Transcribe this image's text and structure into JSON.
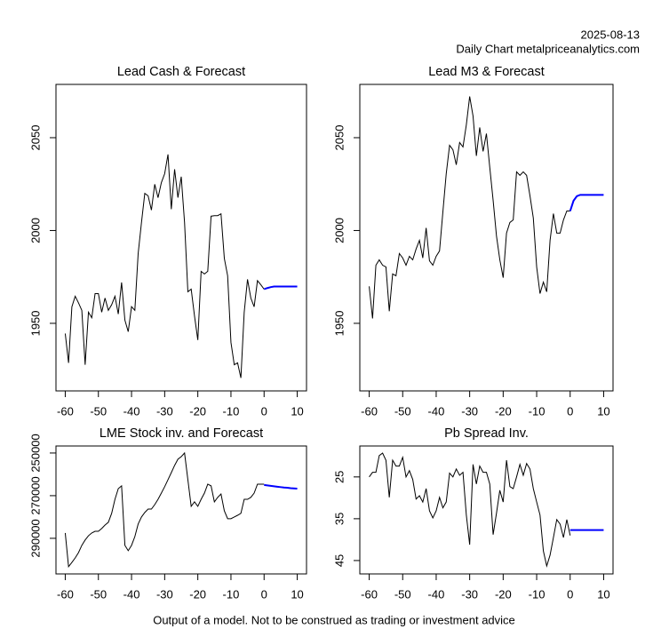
{
  "header": {
    "date": "2025-08-13",
    "source": "Daily Chart metalpriceanalytics.com"
  },
  "footer": "Output of a model. Not to be construed as trading or investment advice",
  "chart_data": [
    {
      "type": "line",
      "title": "Lead Cash & Forecast",
      "x": [
        -60,
        -59,
        -58,
        -57,
        -56,
        -55,
        -54,
        -53,
        -52,
        -51,
        -50,
        -49,
        -48,
        -47,
        -46,
        -45,
        -44,
        -43,
        -42,
        -41,
        -40,
        -39,
        -38,
        -37,
        -36,
        -35,
        -34,
        -33,
        -32,
        -31,
        -30,
        -29,
        -28,
        -27,
        -26,
        -25,
        -24,
        -23,
        -22,
        -21,
        -20,
        -19,
        -18,
        -17,
        -16,
        -15,
        -14,
        -13,
        -12,
        -11,
        -10,
        -9,
        -8,
        -7,
        -6,
        -5,
        -4,
        -3,
        -2,
        -1,
        0,
        1,
        2,
        3,
        4,
        5,
        6,
        7,
        8,
        9,
        10
      ],
      "series": [
        {
          "color": "#000000",
          "values": [
            1944.5,
            1928.7,
            1958.9,
            1964.6,
            1961,
            1957,
            1927.7,
            1956,
            1953,
            1966,
            1966,
            1956,
            1963.6,
            1957,
            1960,
            1964.6,
            1955,
            1972,
            1951.7,
            1945.5,
            1959,
            1957,
            1987.6,
            2004.3,
            2020,
            2018.7,
            2011,
            2024.9,
            2017.7,
            2025.8,
            2030.6,
            2041,
            2011.5,
            2033,
            2017.7,
            2029,
            2004.3,
            1967,
            1968.4,
            1954,
            1941,
            1978,
            1976.6,
            1978,
            2007.7,
            2008,
            2008,
            2009,
            1985,
            1975.6,
            1939.7,
            1927.7,
            1928.7,
            1920.6,
            1956,
            1973.7,
            1963.6,
            1958.9,
            1973,
            1970.8,
            1968.4,
            null,
            null,
            null,
            null,
            null,
            null,
            null,
            null,
            null,
            null
          ]
        },
        {
          "color": "#0000ff",
          "values": [
            null,
            null,
            null,
            null,
            null,
            null,
            null,
            null,
            null,
            null,
            null,
            null,
            null,
            null,
            null,
            null,
            null,
            null,
            null,
            null,
            null,
            null,
            null,
            null,
            null,
            null,
            null,
            null,
            null,
            null,
            null,
            null,
            null,
            null,
            null,
            null,
            null,
            null,
            null,
            null,
            null,
            null,
            null,
            null,
            null,
            null,
            null,
            null,
            null,
            null,
            null,
            null,
            null,
            null,
            null,
            null,
            null,
            null,
            null,
            null,
            1968.4,
            1969,
            1969.5,
            1969.8,
            1969.8,
            1969.8,
            1969.8,
            1969.8,
            1969.8,
            1969.8,
            1969.8
          ]
        }
      ],
      "xlim": [
        -62.8,
        12.8
      ],
      "xticks": [
        -60,
        -50,
        -40,
        -30,
        -20,
        -10,
        0,
        10
      ],
      "ylim": [
        1913.6,
        2078.7
      ],
      "yticks": [
        1950,
        2000,
        2050
      ]
    },
    {
      "type": "line",
      "title": "Lead M3 & Forecast",
      "x": [
        -60,
        -59,
        -58,
        -57,
        -56,
        -55,
        -54,
        -53,
        -52,
        -51,
        -50,
        -49,
        -48,
        -47,
        -46,
        -45,
        -44,
        -43,
        -42,
        -41,
        -40,
        -39,
        -38,
        -37,
        -36,
        -35,
        -34,
        -33,
        -32,
        -31,
        -30,
        -29,
        -28,
        -27,
        -26,
        -25,
        -24,
        -23,
        -22,
        -21,
        -20,
        -19,
        -18,
        -17,
        -16,
        -15,
        -14,
        -13,
        -12,
        -11,
        -10,
        -9,
        -8,
        -7,
        -6,
        -5,
        -4,
        -3,
        -2,
        -1,
        0,
        1,
        2,
        3,
        4,
        5,
        6,
        7,
        8,
        9,
        10
      ],
      "series": [
        {
          "color": "#000000",
          "values": [
            1969.9,
            1952.6,
            1981.3,
            1984.2,
            1981.3,
            1980.4,
            1956.5,
            1976.6,
            1975.6,
            1987.6,
            1985.2,
            1981.3,
            1986.1,
            1984.2,
            1990,
            1994.7,
            1985.2,
            2001.4,
            1983.7,
            1981.3,
            1986.1,
            1989,
            2010,
            2030.6,
            2045.9,
            2043.5,
            2035.4,
            2047.4,
            2045,
            2056.9,
            2072.2,
            2061.7,
            2040.2,
            2055.5,
            2042.6,
            2052.2,
            2034,
            2016.3,
            1997.1,
            1984.2,
            1974.6,
            1998.6,
            2004.3,
            2005.7,
            2031.6,
            2029.7,
            2031.6,
            2029.7,
            2018.7,
            2006.7,
            1980.4,
            1966,
            1972.2,
            1967,
            1994.7,
            2009.1,
            1998.6,
            1998.6,
            2005.7,
            2010.5,
            2010.5,
            null,
            null,
            null,
            null,
            null,
            null,
            null,
            null,
            null,
            null
          ]
        },
        {
          "color": "#0000ff",
          "values": [
            null,
            null,
            null,
            null,
            null,
            null,
            null,
            null,
            null,
            null,
            null,
            null,
            null,
            null,
            null,
            null,
            null,
            null,
            null,
            null,
            null,
            null,
            null,
            null,
            null,
            null,
            null,
            null,
            null,
            null,
            null,
            null,
            null,
            null,
            null,
            null,
            null,
            null,
            null,
            null,
            null,
            null,
            null,
            null,
            null,
            null,
            null,
            null,
            null,
            null,
            null,
            null,
            null,
            null,
            null,
            null,
            null,
            null,
            null,
            null,
            2010.5,
            2016,
            2018.5,
            2019.2,
            2019.2,
            2019.2,
            2019.2,
            2019.2,
            2019.2,
            2019.2,
            2019.2
          ]
        }
      ],
      "xlim": [
        -62.8,
        12.8
      ],
      "xticks": [
        -60,
        -50,
        -40,
        -30,
        -20,
        -10,
        0,
        10
      ],
      "ylim": [
        1913.6,
        2078.7
      ],
      "yticks": [
        1950,
        2000,
        2050
      ]
    },
    {
      "type": "line",
      "title": "LME Stock inv. and Forecast",
      "x": [
        -60,
        -59,
        -58,
        -57,
        -56,
        -55,
        -54,
        -53,
        -52,
        -51,
        -50,
        -49,
        -48,
        -47,
        -46,
        -45,
        -44,
        -43,
        -42,
        -41,
        -40,
        -39,
        -38,
        -37,
        -36,
        -35,
        -34,
        -33,
        -32,
        -31,
        -30,
        -29,
        -28,
        -27,
        -26,
        -25,
        -24,
        -23,
        -22,
        -21,
        -20,
        -19,
        -18,
        -17,
        -16,
        -15,
        -14,
        -13,
        -12,
        -11,
        -10,
        -9,
        -8,
        -7,
        -6,
        -5,
        -4,
        -3,
        -2,
        -1,
        0,
        1,
        2,
        3,
        4,
        5,
        6,
        7,
        8,
        9,
        10
      ],
      "series": [
        {
          "color": "#000000",
          "values": [
            287500,
            303300,
            301300,
            299200,
            296700,
            293300,
            290800,
            288800,
            287500,
            286700,
            286700,
            285400,
            283800,
            282500,
            278300,
            271700,
            266700,
            265400,
            293300,
            295800,
            293300,
            289200,
            283300,
            280000,
            277900,
            276300,
            276300,
            274200,
            271700,
            268800,
            265800,
            262500,
            259200,
            255800,
            252900,
            251700,
            250000,
            262500,
            275000,
            272900,
            275000,
            271700,
            268800,
            264600,
            265400,
            272900,
            270800,
            269200,
            277100,
            280800,
            280800,
            280000,
            279200,
            278300,
            271700,
            271700,
            270800,
            268800,
            264600,
            264600,
            264600,
            null,
            null,
            null,
            null,
            null,
            null,
            null,
            null,
            null,
            null
          ]
        },
        {
          "color": "#0000ff",
          "values": [
            null,
            null,
            null,
            null,
            null,
            null,
            null,
            null,
            null,
            null,
            null,
            null,
            null,
            null,
            null,
            null,
            null,
            null,
            null,
            null,
            null,
            null,
            null,
            null,
            null,
            null,
            null,
            null,
            null,
            null,
            null,
            null,
            null,
            null,
            null,
            null,
            null,
            null,
            null,
            null,
            null,
            null,
            null,
            null,
            null,
            null,
            null,
            null,
            null,
            null,
            null,
            null,
            null,
            null,
            null,
            null,
            null,
            null,
            null,
            null,
            265000,
            265200,
            265400,
            265600,
            265800,
            266000,
            266200,
            266300,
            266500,
            266600,
            266700
          ]
        }
      ],
      "xlim": [
        -62.8,
        12.8
      ],
      "xticks": [
        -60,
        -50,
        -40,
        -30,
        -20,
        -10,
        0,
        10
      ],
      "ylim": [
        306700,
        246700
      ],
      "yticks": [
        250000,
        270000,
        290000
      ]
    },
    {
      "type": "line",
      "title": "Pb Spread Inv.",
      "x": [
        -60,
        -59,
        -58,
        -57,
        -56,
        -55,
        -54,
        -53,
        -52,
        -51,
        -50,
        -49,
        -48,
        -47,
        -46,
        -45,
        -44,
        -43,
        -42,
        -41,
        -40,
        -39,
        -38,
        -37,
        -36,
        -35,
        -34,
        -33,
        -32,
        -31,
        -30,
        -29,
        -28,
        -27,
        -26,
        -25,
        -24,
        -23,
        -22,
        -21,
        -20,
        -19,
        -18,
        -17,
        -16,
        -15,
        -14,
        -13,
        -12,
        -11,
        -10,
        -9,
        -8,
        -7,
        -6,
        -5,
        -4,
        -3,
        -2,
        -1,
        0,
        1,
        2,
        3,
        4,
        5,
        6,
        7,
        8,
        9,
        10
      ],
      "series": [
        {
          "color": "#000000",
          "values": [
            25,
            23.9,
            23.9,
            19.9,
            19.3,
            21,
            29.9,
            21,
            22.4,
            22.4,
            20.3,
            25,
            23.5,
            25.6,
            30.3,
            29.5,
            31,
            27.8,
            33.1,
            34.8,
            33.1,
            29.9,
            32.4,
            31,
            24.1,
            25,
            23.1,
            24.6,
            23.9,
            34.1,
            41.2,
            22,
            26.7,
            22.4,
            23.9,
            23.9,
            26.7,
            38.8,
            33.7,
            28.2,
            31,
            21,
            27.3,
            27.8,
            25,
            22,
            24.6,
            21.8,
            23.1,
            27.8,
            31,
            34.1,
            42.7,
            46.3,
            43.7,
            39.5,
            35.2,
            36.3,
            39.5,
            35.2,
            39,
            null,
            null,
            null,
            null,
            null,
            null,
            null,
            null,
            null,
            null
          ]
        },
        {
          "color": "#0000ff",
          "values": [
            null,
            null,
            null,
            null,
            null,
            null,
            null,
            null,
            null,
            null,
            null,
            null,
            null,
            null,
            null,
            null,
            null,
            null,
            null,
            null,
            null,
            null,
            null,
            null,
            null,
            null,
            null,
            null,
            null,
            null,
            null,
            null,
            null,
            null,
            null,
            null,
            null,
            null,
            null,
            null,
            null,
            null,
            null,
            null,
            null,
            null,
            null,
            null,
            null,
            null,
            null,
            null,
            null,
            null,
            null,
            null,
            null,
            null,
            null,
            null,
            37.7,
            37.7,
            37.7,
            37.7,
            37.7,
            37.7,
            37.7,
            37.7,
            37.7,
            37.7,
            37.7
          ]
        }
      ],
      "xlim": [
        -62.8,
        12.8
      ],
      "xticks": [
        -60,
        -50,
        -40,
        -30,
        -20,
        -10,
        0,
        10
      ],
      "ylim": [
        48.2,
        17.6
      ],
      "yticks": [
        25,
        35,
        45
      ]
    }
  ]
}
